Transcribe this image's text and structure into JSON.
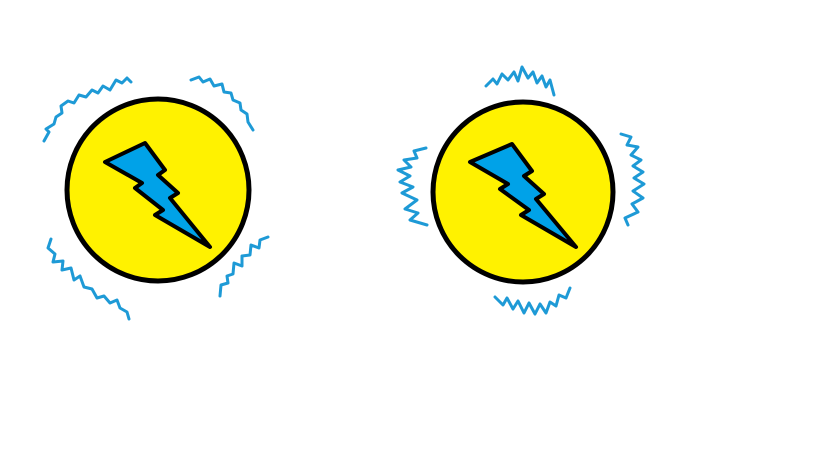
{
  "drawing": {
    "colors": {
      "background": "#ffffff",
      "disc_fill": "#fff200",
      "outline": "#000000",
      "bolt_fill": "#00a2e8",
      "spark": "#1e9ad6"
    },
    "icons": [
      {
        "name": "lightning-bolt-icon",
        "count": 2
      },
      {
        "name": "electric-spark-icon",
        "count": 8
      }
    ]
  }
}
